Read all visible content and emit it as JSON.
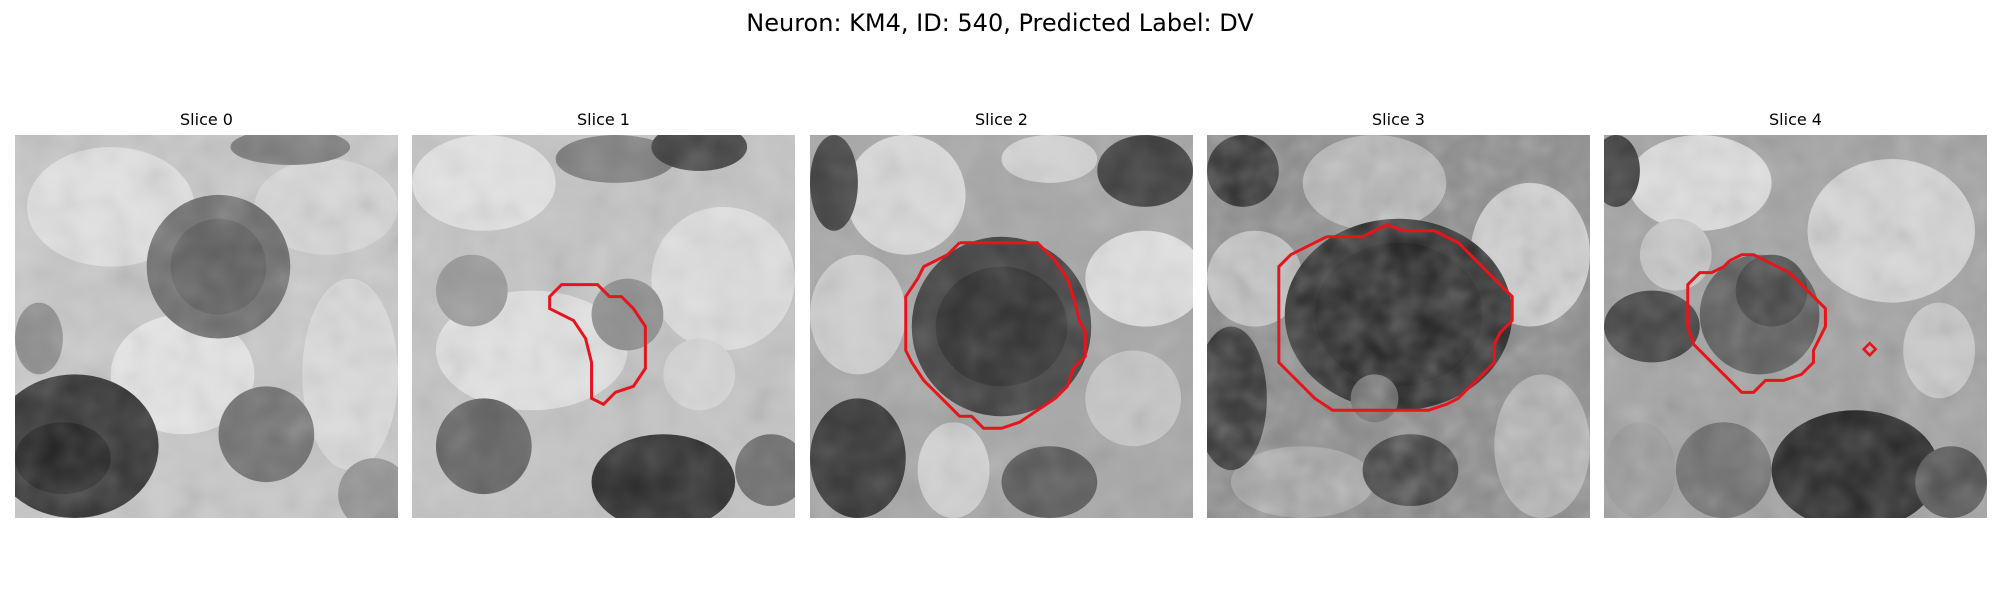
{
  "figure": {
    "title": "Neuron: KM4, ID: 540, Predicted Label: DV"
  },
  "contour_color": "#e8141c",
  "panels": [
    {
      "title": "Slice 0",
      "has_contour": false
    },
    {
      "title": "Slice 1",
      "has_contour": true
    },
    {
      "title": "Slice 2",
      "has_contour": true
    },
    {
      "title": "Slice 3",
      "has_contour": true
    },
    {
      "title": "Slice 4",
      "has_contour": true
    }
  ]
}
